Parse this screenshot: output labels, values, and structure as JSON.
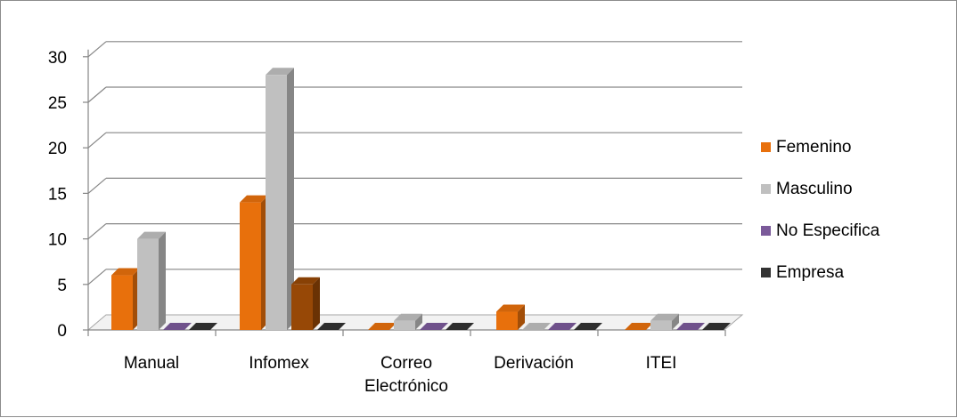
{
  "chart_data": {
    "type": "bar",
    "categories": [
      "Manual",
      "Infomex",
      "Correo Electrónico",
      "Derivación",
      "ITEI"
    ],
    "category_lines": [
      [
        "Manual"
      ],
      [
        "Infomex"
      ],
      [
        "Correo",
        "Electrónico"
      ],
      [
        "Derivación"
      ],
      [
        "ITEI"
      ]
    ],
    "series": [
      {
        "name": "Femenino",
        "values": [
          6,
          14,
          0,
          2,
          0
        ]
      },
      {
        "name": "Masculino",
        "values": [
          10,
          28,
          1,
          0,
          1
        ]
      },
      {
        "name": "No Especifica",
        "values": [
          0,
          5,
          0,
          0,
          0
        ]
      },
      {
        "name": "Empresa",
        "values": [
          0,
          0,
          0,
          0,
          0
        ]
      }
    ],
    "yticks": [
      0,
      5,
      10,
      15,
      20,
      25,
      30
    ],
    "ylim": [
      0,
      30
    ],
    "grid": true,
    "legend": "right",
    "title": "",
    "xlabel": "",
    "ylabel": ""
  },
  "colors": {
    "Femenino": "#e8700c",
    "Masculino": "#c0c0c0",
    "No Especifica": "#7b5a9a",
    "Empresa": "#333333",
    "NoEspecifica_infomex": "#974806"
  }
}
